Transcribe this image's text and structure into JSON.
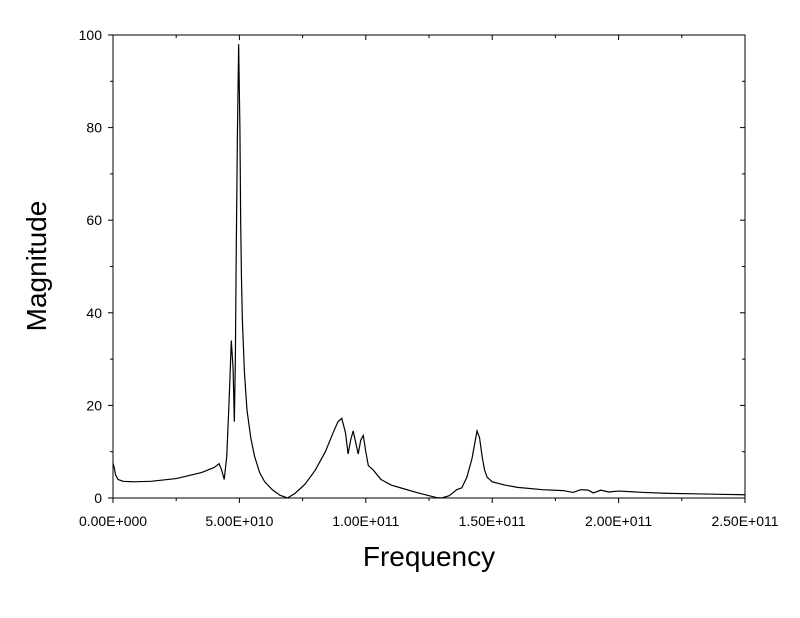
{
  "chart_data": {
    "type": "line",
    "title": "",
    "xlabel": "Frequency",
    "ylabel": "Magnitude",
    "xlim": [
      0,
      250000000000
    ],
    "ylim": [
      0,
      100
    ],
    "grid": false,
    "line_color": "#000000",
    "x_ticks": [
      {
        "value": 0,
        "label": "0.00E+000"
      },
      {
        "value": 50000000000,
        "label": "5.00E+010"
      },
      {
        "value": 100000000000,
        "label": "1.00E+011"
      },
      {
        "value": 150000000000,
        "label": "1.50E+011"
      },
      {
        "value": 200000000000,
        "label": "2.00E+011"
      },
      {
        "value": 250000000000,
        "label": "2.50E+011"
      }
    ],
    "y_ticks": [
      {
        "value": 0,
        "label": "0"
      },
      {
        "value": 20,
        "label": "20"
      },
      {
        "value": 40,
        "label": "40"
      },
      {
        "value": 60,
        "label": "60"
      },
      {
        "value": 80,
        "label": "80"
      },
      {
        "value": 100,
        "label": "100"
      }
    ],
    "series": [
      {
        "x": [
          0,
          500000000,
          1000000000,
          2000000000,
          4000000000,
          8000000000,
          15000000000,
          25000000000,
          35000000000,
          40000000000,
          42000000000,
          43000000000,
          44000000000,
          45000000000,
          46000000000,
          46800000000,
          47500000000,
          48000000000,
          48400000000,
          48700000000,
          49200000000,
          49700000000,
          50200000000,
          50500000000,
          50800000000,
          51200000000,
          52000000000,
          53000000000,
          54500000000,
          56000000000,
          58000000000,
          60000000000,
          63000000000,
          66000000000,
          69000000000,
          72000000000,
          76000000000,
          80000000000,
          84000000000,
          87000000000,
          89000000000,
          90500000000,
          92000000000,
          93000000000,
          94000000000,
          95000000000,
          96000000000,
          97000000000,
          98000000000,
          99000000000,
          100000000000,
          101000000000,
          103000000000,
          106000000000,
          110000000000,
          115000000000,
          120000000000,
          125000000000,
          128000000000,
          130000000000,
          133000000000,
          136000000000,
          138000000000,
          140000000000,
          142000000000,
          143000000000,
          144000000000,
          145000000000,
          146000000000,
          147000000000,
          148000000000,
          150000000000,
          155000000000,
          160000000000,
          170000000000,
          178000000000,
          182000000000,
          185000000000,
          188000000000,
          190000000000,
          193000000000,
          196000000000,
          200000000000,
          210000000000,
          220000000000,
          230000000000,
          240000000000,
          250000000000
        ],
        "y": [
          7.5,
          6.5,
          5.0,
          4.0,
          3.6,
          3.5,
          3.6,
          4.2,
          5.5,
          6.6,
          7.4,
          6.0,
          4.0,
          9.0,
          22.0,
          34.0,
          28.0,
          16.5,
          30.0,
          50.0,
          78.0,
          98.0,
          80.0,
          60.0,
          48.0,
          38.0,
          27.0,
          19.0,
          13.0,
          9.0,
          5.5,
          3.5,
          1.8,
          0.6,
          0.0,
          1.0,
          3.0,
          6.0,
          10.0,
          14.0,
          16.5,
          17.2,
          14.0,
          9.5,
          12.5,
          14.5,
          12.0,
          9.5,
          12.5,
          13.5,
          10.0,
          7.0,
          6.0,
          4.0,
          2.8,
          2.0,
          1.2,
          0.5,
          0.1,
          0.0,
          0.5,
          1.8,
          2.2,
          4.5,
          8.5,
          11.5,
          14.5,
          13.0,
          9.0,
          6.0,
          4.5,
          3.5,
          2.8,
          2.3,
          1.8,
          1.6,
          1.2,
          1.8,
          1.7,
          1.1,
          1.7,
          1.3,
          1.5,
          1.2,
          1.0,
          0.9,
          0.8,
          0.7
        ]
      }
    ]
  }
}
